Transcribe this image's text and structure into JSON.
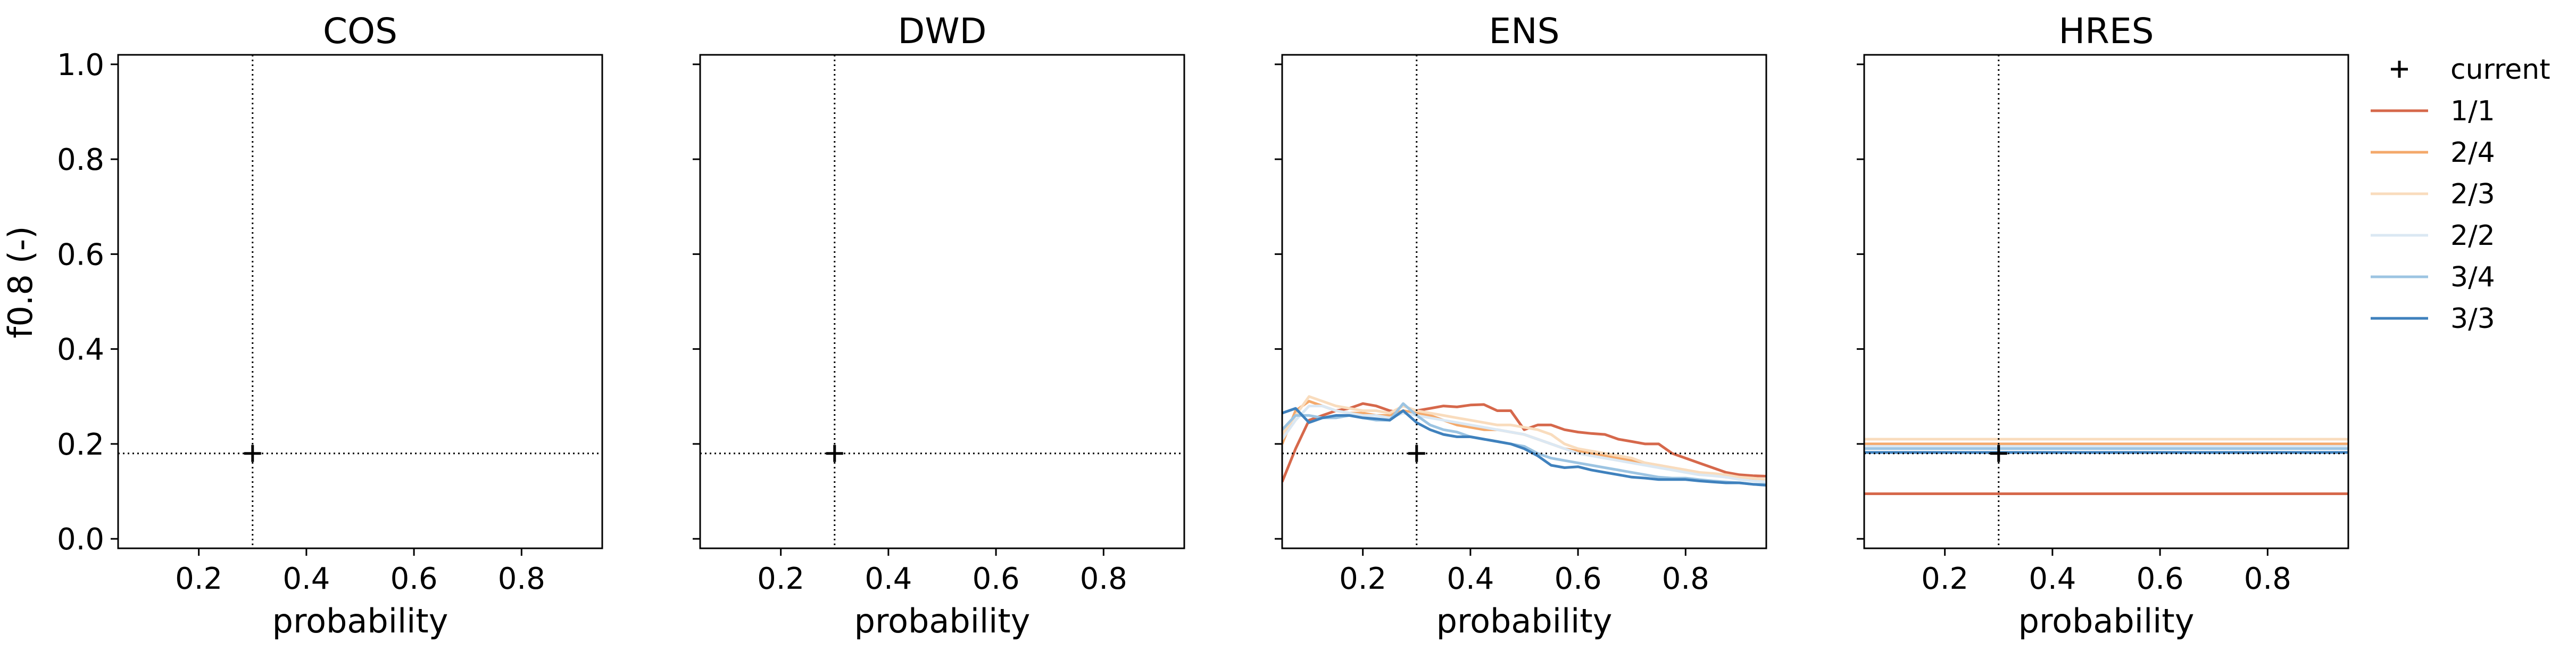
{
  "figure": {
    "ylabel": "f0.8 (-)",
    "xlabel": "probability"
  },
  "legend": {
    "placement": "right-outside-top",
    "items": [
      {
        "label": "current",
        "kind": "marker",
        "color": "#000000"
      },
      {
        "label": "1/1",
        "kind": "line",
        "color": "#d6684b"
      },
      {
        "label": "2/4",
        "kind": "line",
        "color": "#f4a96b"
      },
      {
        "label": "2/3",
        "kind": "line",
        "color": "#f9dcbd"
      },
      {
        "label": "2/2",
        "kind": "line",
        "color": "#dbe8f3"
      },
      {
        "label": "3/4",
        "kind": "line",
        "color": "#9cc4e2"
      },
      {
        "label": "3/3",
        "kind": "line",
        "color": "#3f81bd"
      }
    ]
  },
  "chart_data": [
    {
      "type": "line",
      "title": "COS",
      "xlabel": "probability",
      "ylabel": "f0.8 (-)",
      "xlim": [
        0.05,
        0.95
      ],
      "ylim": [
        -0.02,
        1.02
      ],
      "xticks": [
        "0.2",
        "0.4",
        "0.6",
        "0.8"
      ],
      "yticks": [
        "0.0",
        "0.2",
        "0.4",
        "0.6",
        "0.8",
        "1.0"
      ],
      "show_ytick_labels": true,
      "current": {
        "x": 0.3,
        "y": 0.18
      },
      "series": []
    },
    {
      "type": "line",
      "title": "DWD",
      "xlabel": "probability",
      "ylabel": "",
      "xlim": [
        0.05,
        0.95
      ],
      "ylim": [
        -0.02,
        1.02
      ],
      "xticks": [
        "0.2",
        "0.4",
        "0.6",
        "0.8"
      ],
      "yticks": [
        "0.0",
        "0.2",
        "0.4",
        "0.6",
        "0.8",
        "1.0"
      ],
      "show_ytick_labels": false,
      "current": {
        "x": 0.3,
        "y": 0.18
      },
      "series": []
    },
    {
      "type": "line",
      "title": "ENS",
      "xlabel": "probability",
      "ylabel": "",
      "xlim": [
        0.05,
        0.95
      ],
      "ylim": [
        -0.02,
        1.02
      ],
      "xticks": [
        "0.2",
        "0.4",
        "0.6",
        "0.8"
      ],
      "yticks": [
        "0.0",
        "0.2",
        "0.4",
        "0.6",
        "0.8",
        "1.0"
      ],
      "show_ytick_labels": false,
      "current": {
        "x": 0.3,
        "y": 0.18
      },
      "series": [
        {
          "name": "1/1",
          "color": "#d6684b",
          "x": [
            0.05,
            0.075,
            0.1,
            0.125,
            0.15,
            0.175,
            0.2,
            0.225,
            0.25,
            0.275,
            0.3,
            0.325,
            0.35,
            0.375,
            0.4,
            0.425,
            0.45,
            0.475,
            0.5,
            0.525,
            0.55,
            0.575,
            0.6,
            0.625,
            0.65,
            0.675,
            0.7,
            0.725,
            0.75,
            0.775,
            0.8,
            0.825,
            0.85,
            0.875,
            0.9,
            0.925,
            0.95
          ],
          "y": [
            0.12,
            0.19,
            0.25,
            0.26,
            0.27,
            0.275,
            0.285,
            0.28,
            0.27,
            0.265,
            0.27,
            0.275,
            0.28,
            0.278,
            0.282,
            0.283,
            0.27,
            0.27,
            0.23,
            0.24,
            0.24,
            0.23,
            0.225,
            0.222,
            0.22,
            0.21,
            0.205,
            0.2,
            0.2,
            0.18,
            0.17,
            0.16,
            0.15,
            0.14,
            0.135,
            0.133,
            0.132
          ]
        },
        {
          "name": "2/4",
          "color": "#f4a96b",
          "x": [
            0.05,
            0.075,
            0.1,
            0.125,
            0.15,
            0.175,
            0.2,
            0.225,
            0.25,
            0.275,
            0.3,
            0.325,
            0.35,
            0.375,
            0.4,
            0.425,
            0.45,
            0.475,
            0.5,
            0.525,
            0.55,
            0.575,
            0.6,
            0.625,
            0.65,
            0.675,
            0.7,
            0.725,
            0.75,
            0.775,
            0.8,
            0.825,
            0.85,
            0.875,
            0.9,
            0.925,
            0.95
          ],
          "y": [
            0.2,
            0.27,
            0.29,
            0.28,
            0.27,
            0.265,
            0.265,
            0.26,
            0.26,
            0.27,
            0.265,
            0.26,
            0.25,
            0.24,
            0.235,
            0.23,
            0.23,
            0.225,
            0.22,
            0.21,
            0.2,
            0.19,
            0.185,
            0.18,
            0.175,
            0.17,
            0.165,
            0.16,
            0.155,
            0.15,
            0.145,
            0.14,
            0.135,
            0.13,
            0.128,
            0.125,
            0.122
          ]
        },
        {
          "name": "2/3",
          "color": "#f9dcbd",
          "x": [
            0.05,
            0.075,
            0.1,
            0.125,
            0.15,
            0.175,
            0.2,
            0.225,
            0.25,
            0.275,
            0.3,
            0.325,
            0.35,
            0.375,
            0.4,
            0.425,
            0.45,
            0.475,
            0.5,
            0.525,
            0.55,
            0.575,
            0.6,
            0.625,
            0.65,
            0.675,
            0.7,
            0.725,
            0.75,
            0.775,
            0.8,
            0.825,
            0.85,
            0.875,
            0.9,
            0.925,
            0.95
          ],
          "y": [
            0.22,
            0.26,
            0.3,
            0.29,
            0.28,
            0.275,
            0.27,
            0.27,
            0.265,
            0.28,
            0.27,
            0.265,
            0.26,
            0.255,
            0.25,
            0.245,
            0.24,
            0.24,
            0.235,
            0.23,
            0.22,
            0.2,
            0.19,
            0.185,
            0.18,
            0.175,
            0.17,
            0.16,
            0.155,
            0.15,
            0.145,
            0.14,
            0.138,
            0.135,
            0.13,
            0.128,
            0.125
          ]
        },
        {
          "name": "2/2",
          "color": "#dbe8f3",
          "x": [
            0.05,
            0.075,
            0.1,
            0.125,
            0.15,
            0.175,
            0.2,
            0.225,
            0.25,
            0.275,
            0.3,
            0.325,
            0.35,
            0.375,
            0.4,
            0.425,
            0.45,
            0.475,
            0.5,
            0.525,
            0.55,
            0.575,
            0.6,
            0.625,
            0.65,
            0.675,
            0.7,
            0.725,
            0.75,
            0.775,
            0.8,
            0.825,
            0.85,
            0.875,
            0.9,
            0.925,
            0.95
          ],
          "y": [
            0.21,
            0.25,
            0.28,
            0.28,
            0.27,
            0.265,
            0.26,
            0.26,
            0.255,
            0.265,
            0.26,
            0.255,
            0.25,
            0.245,
            0.24,
            0.235,
            0.23,
            0.225,
            0.22,
            0.21,
            0.2,
            0.19,
            0.18,
            0.175,
            0.17,
            0.165,
            0.16,
            0.155,
            0.15,
            0.145,
            0.14,
            0.135,
            0.133,
            0.13,
            0.125,
            0.122,
            0.12
          ]
        },
        {
          "name": "3/4",
          "color": "#9cc4e2",
          "x": [
            0.05,
            0.075,
            0.1,
            0.125,
            0.15,
            0.175,
            0.2,
            0.225,
            0.25,
            0.275,
            0.3,
            0.325,
            0.35,
            0.375,
            0.4,
            0.425,
            0.45,
            0.475,
            0.5,
            0.525,
            0.55,
            0.575,
            0.6,
            0.625,
            0.65,
            0.675,
            0.7,
            0.725,
            0.75,
            0.775,
            0.8,
            0.825,
            0.85,
            0.875,
            0.9,
            0.925,
            0.95
          ],
          "y": [
            0.23,
            0.26,
            0.26,
            0.255,
            0.255,
            0.26,
            0.255,
            0.25,
            0.25,
            0.285,
            0.26,
            0.24,
            0.23,
            0.225,
            0.215,
            0.21,
            0.205,
            0.2,
            0.195,
            0.18,
            0.17,
            0.165,
            0.16,
            0.155,
            0.15,
            0.145,
            0.14,
            0.135,
            0.13,
            0.128,
            0.128,
            0.125,
            0.122,
            0.12,
            0.118,
            0.115,
            0.115
          ]
        },
        {
          "name": "3/3",
          "color": "#3f81bd",
          "x": [
            0.05,
            0.075,
            0.1,
            0.125,
            0.15,
            0.175,
            0.2,
            0.225,
            0.25,
            0.275,
            0.3,
            0.325,
            0.35,
            0.375,
            0.4,
            0.425,
            0.45,
            0.475,
            0.5,
            0.525,
            0.55,
            0.575,
            0.6,
            0.625,
            0.65,
            0.675,
            0.7,
            0.725,
            0.75,
            0.775,
            0.8,
            0.825,
            0.85,
            0.875,
            0.9,
            0.925,
            0.95
          ],
          "y": [
            0.265,
            0.275,
            0.245,
            0.255,
            0.26,
            0.26,
            0.255,
            0.253,
            0.25,
            0.27,
            0.245,
            0.23,
            0.22,
            0.215,
            0.215,
            0.21,
            0.205,
            0.2,
            0.19,
            0.175,
            0.155,
            0.15,
            0.152,
            0.145,
            0.14,
            0.135,
            0.13,
            0.128,
            0.125,
            0.125,
            0.125,
            0.122,
            0.12,
            0.118,
            0.118,
            0.115,
            0.113
          ]
        }
      ]
    },
    {
      "type": "line",
      "title": "HRES",
      "xlabel": "probability",
      "ylabel": "",
      "xlim": [
        0.05,
        0.95
      ],
      "ylim": [
        -0.02,
        1.02
      ],
      "xticks": [
        "0.2",
        "0.4",
        "0.6",
        "0.8"
      ],
      "yticks": [
        "0.0",
        "0.2",
        "0.4",
        "0.6",
        "0.8",
        "1.0"
      ],
      "show_ytick_labels": false,
      "current": {
        "x": 0.3,
        "y": 0.18
      },
      "series": [
        {
          "name": "1/1",
          "color": "#d6684b",
          "x": [
            0.05,
            0.95
          ],
          "y": [
            0.095,
            0.095
          ]
        },
        {
          "name": "2/4",
          "color": "#f4a96b",
          "x": [
            0.05,
            0.95
          ],
          "y": [
            0.2,
            0.2
          ]
        },
        {
          "name": "2/3",
          "color": "#f9dcbd",
          "x": [
            0.05,
            0.95
          ],
          "y": [
            0.21,
            0.21
          ]
        },
        {
          "name": "2/2",
          "color": "#dbe8f3",
          "x": [
            0.05,
            0.95
          ],
          "y": [
            0.195,
            0.195
          ]
        },
        {
          "name": "3/4",
          "color": "#9cc4e2",
          "x": [
            0.05,
            0.95
          ],
          "y": [
            0.19,
            0.19
          ]
        },
        {
          "name": "3/3",
          "color": "#3f81bd",
          "x": [
            0.05,
            0.95
          ],
          "y": [
            0.182,
            0.182
          ]
        }
      ]
    }
  ]
}
